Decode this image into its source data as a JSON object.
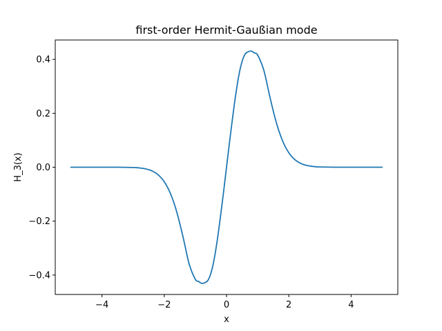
{
  "chart_data": {
    "type": "line",
    "title": "first-order Hermit-Gaußian mode",
    "xlabel": "x",
    "ylabel": "H_3(x)",
    "xlim": [
      -5.5,
      5.5
    ],
    "ylim": [
      -0.472,
      0.472
    ],
    "grid": false,
    "x_ticks": [
      {
        "value": -4,
        "label": "−4"
      },
      {
        "value": -2,
        "label": "−2"
      },
      {
        "value": 0,
        "label": "0"
      },
      {
        "value": 2,
        "label": "2"
      },
      {
        "value": 4,
        "label": "4"
      }
    ],
    "y_ticks": [
      {
        "value": -0.4,
        "label": "−0.4"
      },
      {
        "value": -0.2,
        "label": "−0.2"
      },
      {
        "value": 0.0,
        "label": "0.0"
      },
      {
        "value": 0.2,
        "label": "0.2"
      },
      {
        "value": 0.4,
        "label": "0.4"
      }
    ],
    "series": [
      {
        "color": "#1f77b4",
        "x": [
          -5.0,
          -4.5,
          -4.0,
          -3.5,
          -3.0,
          -2.8,
          -2.6,
          -2.4,
          -2.2,
          -2.0,
          -1.8,
          -1.6,
          -1.4,
          -1.2,
          -1.0,
          -0.9,
          -0.8,
          -0.707,
          -0.6,
          -0.5,
          -0.4,
          -0.3,
          -0.2,
          -0.1,
          0.0,
          0.1,
          0.2,
          0.3,
          0.4,
          0.5,
          0.6,
          0.707,
          0.8,
          0.9,
          1.0,
          1.2,
          1.4,
          1.6,
          1.8,
          2.0,
          2.2,
          2.4,
          2.6,
          2.8,
          3.0,
          3.5,
          4.0,
          4.5,
          5.0
        ],
        "y": [
          0.0,
          0.0,
          0.0,
          0.0,
          -0.001,
          -0.0025,
          -0.006,
          -0.0133,
          -0.0276,
          -0.0537,
          -0.0977,
          -0.1653,
          -0.2569,
          -0.3587,
          -0.4162,
          -0.4235,
          -0.4307,
          -0.4289,
          -0.4201,
          -0.3926,
          -0.3432,
          -0.2728,
          -0.1884,
          -0.0964,
          0.0,
          0.0964,
          0.1884,
          0.2728,
          0.3432,
          0.3926,
          0.4201,
          0.4289,
          0.4307,
          0.4235,
          0.4162,
          0.3587,
          0.2569,
          0.1653,
          0.0977,
          0.0537,
          0.0276,
          0.0133,
          0.006,
          0.0025,
          0.001,
          0.0,
          0.0,
          0.0,
          0.0
        ]
      }
    ]
  }
}
